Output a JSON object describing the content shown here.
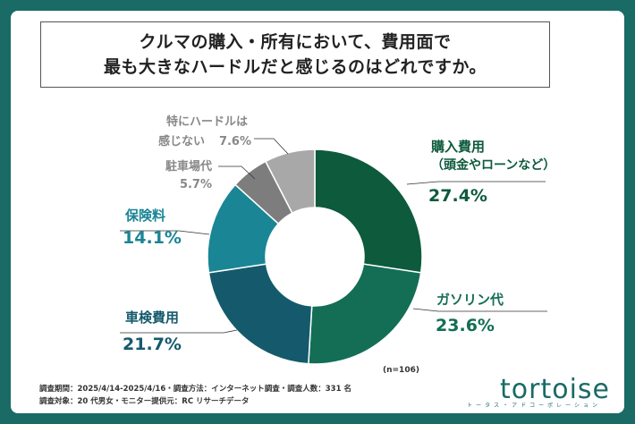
{
  "title": [
    "クルマの購入・所有において、費用面で",
    "最も大きなハードルだと感じるのはどれですか。"
  ],
  "chart_data": {
    "type": "pie",
    "donut": true,
    "n_label": "(n=106)",
    "slices": [
      {
        "label": [
          "購入費用",
          "（頭金やローンなど）"
        ],
        "value": 27.4,
        "value_text": "27.4%",
        "color": "#0d5a3c",
        "label_color": "#0d5a3c"
      },
      {
        "label": [
          "ガソリン代"
        ],
        "value": 23.6,
        "value_text": "23.6%",
        "color": "#136e55",
        "label_color": "#136e55"
      },
      {
        "label": [
          "車検費用"
        ],
        "value": 21.7,
        "value_text": "21.7%",
        "color": "#145a6c",
        "label_color": "#145a6c"
      },
      {
        "label": [
          "保険料"
        ],
        "value": 14.1,
        "value_text": "14.1%",
        "color": "#1a8595",
        "label_color": "#1a8595"
      },
      {
        "label": [
          "駐車場代"
        ],
        "value": 5.7,
        "value_text": "5.7%",
        "color": "#7d7d7d",
        "label_color": "#888888"
      },
      {
        "label": [
          "特にハードルは",
          "感じない"
        ],
        "value": 7.6,
        "value_text": "7.6%",
        "color": "#a8a8a8",
        "label_color": "#888888"
      }
    ]
  },
  "footer": {
    "line1": "調査期間：2025/4/14-2025/4/16・調査方法：インターネット調査・調査人数：331 名",
    "line2": "調査対象：20 代男女・モニター提供元：RC リサーチデータ"
  },
  "brand": {
    "name": "tortoise",
    "tagline": "トータス・アドコーポレーション"
  }
}
